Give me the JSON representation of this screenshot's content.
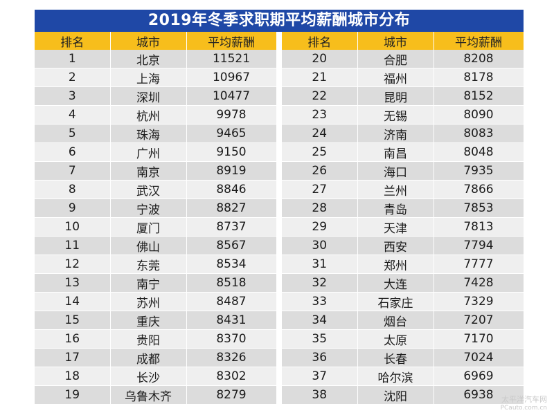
{
  "title": "2019年冬季求职期平均薪酬城市分布",
  "headers": {
    "rank": "排名",
    "city": "城市",
    "salary": "平均薪酬"
  },
  "left_rows": [
    {
      "rank": "1",
      "city": "北京",
      "salary": "11521"
    },
    {
      "rank": "2",
      "city": "上海",
      "salary": "10967"
    },
    {
      "rank": "3",
      "city": "深圳",
      "salary": "10477"
    },
    {
      "rank": "4",
      "city": "杭州",
      "salary": "9978"
    },
    {
      "rank": "5",
      "city": "珠海",
      "salary": "9465"
    },
    {
      "rank": "6",
      "city": "广州",
      "salary": "9150"
    },
    {
      "rank": "7",
      "city": "南京",
      "salary": "8919"
    },
    {
      "rank": "8",
      "city": "武汉",
      "salary": "8846"
    },
    {
      "rank": "9",
      "city": "宁波",
      "salary": "8827"
    },
    {
      "rank": "10",
      "city": "厦门",
      "salary": "8737"
    },
    {
      "rank": "11",
      "city": "佛山",
      "salary": "8567"
    },
    {
      "rank": "12",
      "city": "东莞",
      "salary": "8534"
    },
    {
      "rank": "13",
      "city": "南宁",
      "salary": "8518"
    },
    {
      "rank": "14",
      "city": "苏州",
      "salary": "8487"
    },
    {
      "rank": "15",
      "city": "重庆",
      "salary": "8431"
    },
    {
      "rank": "16",
      "city": "贵阳",
      "salary": "8370"
    },
    {
      "rank": "17",
      "city": "成都",
      "salary": "8326"
    },
    {
      "rank": "18",
      "city": "长沙",
      "salary": "8302"
    },
    {
      "rank": "19",
      "city": "乌鲁木齐",
      "salary": "8279"
    }
  ],
  "right_rows": [
    {
      "rank": "20",
      "city": "合肥",
      "salary": "8208"
    },
    {
      "rank": "21",
      "city": "福州",
      "salary": "8178"
    },
    {
      "rank": "22",
      "city": "昆明",
      "salary": "8152"
    },
    {
      "rank": "23",
      "city": "无锡",
      "salary": "8090"
    },
    {
      "rank": "24",
      "city": "济南",
      "salary": "8083"
    },
    {
      "rank": "25",
      "city": "南昌",
      "salary": "8048"
    },
    {
      "rank": "26",
      "city": "海口",
      "salary": "7935"
    },
    {
      "rank": "27",
      "city": "兰州",
      "salary": "7866"
    },
    {
      "rank": "28",
      "city": "青岛",
      "salary": "7853"
    },
    {
      "rank": "29",
      "city": "天津",
      "salary": "7813"
    },
    {
      "rank": "30",
      "city": "西安",
      "salary": "7794"
    },
    {
      "rank": "31",
      "city": "郑州",
      "salary": "7777"
    },
    {
      "rank": "32",
      "city": "大连",
      "salary": "7428"
    },
    {
      "rank": "33",
      "city": "石家庄",
      "salary": "7329"
    },
    {
      "rank": "34",
      "city": "烟台",
      "salary": "7207"
    },
    {
      "rank": "35",
      "city": "太原",
      "salary": "7170"
    },
    {
      "rank": "36",
      "city": "长春",
      "salary": "7024"
    },
    {
      "rank": "37",
      "city": "哈尔滨",
      "salary": "6969"
    },
    {
      "rank": "38",
      "city": "沈阳",
      "salary": "6938"
    }
  ],
  "watermark": {
    "main": "太平洋汽车网",
    "sub": "PCauto.com.cn"
  },
  "colors": {
    "title_bg": "#1f48a6",
    "header_bg": "#f7be1c",
    "row_dark": "#dcdcdc",
    "row_light": "#efefef"
  }
}
